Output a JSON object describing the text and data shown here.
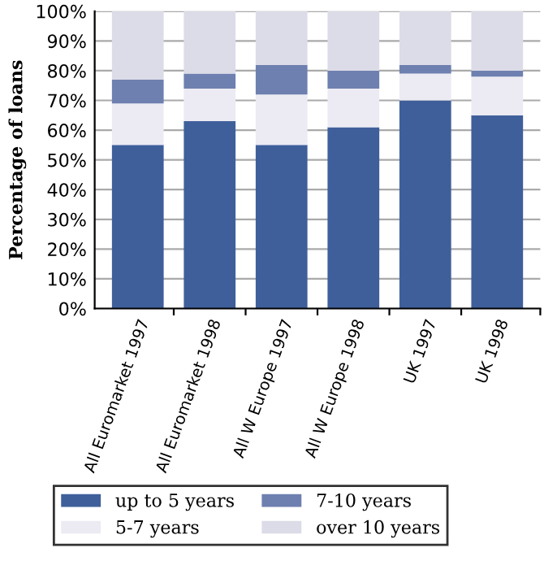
{
  "chart_data": {
    "type": "bar",
    "stacked": true,
    "ylabel": "Percentage of loans",
    "categories": [
      "All Euromarket 1997",
      "All Euromarket 1998",
      "All W Europe 1997",
      "All W Europe 1998",
      "UK 1997",
      "UK 1998"
    ],
    "series": [
      {
        "name": "up to 5 years",
        "color": "#3f5f9b",
        "values": [
          55,
          63,
          55,
          61,
          70,
          65
        ]
      },
      {
        "name": "5-7 years",
        "color": "#ecebf3",
        "values": [
          14,
          11,
          17,
          13,
          9,
          13
        ]
      },
      {
        "name": "7-10 years",
        "color": "#6e80b0",
        "values": [
          8,
          5,
          10,
          6,
          3,
          2
        ]
      },
      {
        "name": "over 10 years",
        "color": "#dcdce8",
        "values": [
          23,
          21,
          18,
          20,
          18,
          20
        ]
      }
    ],
    "ylim": [
      0,
      100
    ],
    "yticks": [
      {
        "value": 0,
        "label": "0%"
      },
      {
        "value": 10,
        "label": "10%"
      },
      {
        "value": 20,
        "label": "20%"
      },
      {
        "value": 30,
        "label": "30%"
      },
      {
        "value": 40,
        "label": "40%"
      },
      {
        "value": 50,
        "label": "50%"
      },
      {
        "value": 60,
        "label": "60%"
      },
      {
        "value": 70,
        "label": "70%"
      },
      {
        "value": 80,
        "label": "80%"
      },
      {
        "value": 90,
        "label": "90%"
      },
      {
        "value": 100,
        "label": "100%"
      }
    ],
    "grid": "y",
    "legend": "bottom"
  }
}
